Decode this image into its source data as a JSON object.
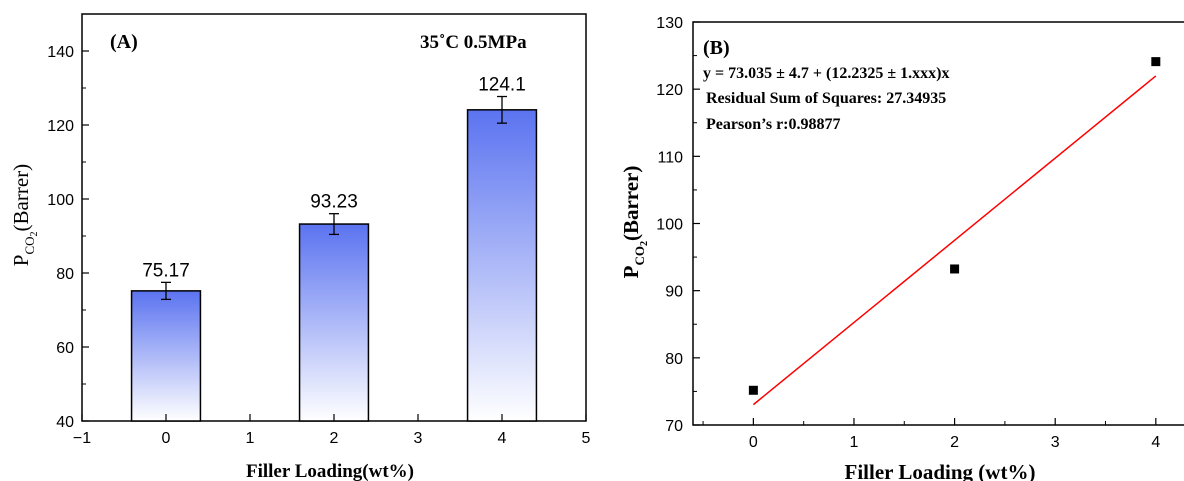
{
  "chart_data": [
    {
      "type": "bar",
      "panel_label": "(A)",
      "annotation": "35˚C 0.5MPa",
      "xlabel": "Filler Loading(wt%)",
      "ylabel": "P",
      "ylabel_sub": "CO",
      "ylabel_sub2": "2",
      "ylabel_unit": "(Barrer)",
      "x": [
        0,
        2,
        4
      ],
      "values": [
        75.17,
        93.23,
        124.1
      ],
      "value_labels": [
        "75.17",
        "93.23",
        "124.1"
      ],
      "error": [
        2.3,
        2.8,
        3.6
      ],
      "xlim": [
        -1,
        5
      ],
      "ylim": [
        40,
        150
      ],
      "xticks": [
        -1,
        0,
        1,
        2,
        3,
        4,
        5
      ],
      "xtick_labels": [
        "−1",
        "0",
        "1",
        "2",
        "3",
        "4",
        "5"
      ],
      "yticks": [
        40,
        60,
        80,
        100,
        120,
        140
      ],
      "bar_color": "#5b73f0"
    },
    {
      "type": "scatter",
      "panel_label": "(B)",
      "annotation_lines": [
        "y = 73.035 ± 4.7 + (12.2325 ± 1.xxx)x",
        "Residual Sum of Squares: 27.34935",
        "Pearson’s r:0.98877"
      ],
      "xlabel": "Filler Loading (wt%)",
      "ylabel": "P",
      "ylabel_sub": "CO",
      "ylabel_sub2": "2",
      "ylabel_unit": "(Barrer)",
      "x": [
        0,
        2,
        4
      ],
      "y": [
        75.17,
        93.23,
        124.1
      ],
      "fit": {
        "intercept": 73.035,
        "slope": 12.2325,
        "x_range": [
          0,
          4
        ],
        "color": "#ff0000"
      },
      "xlim": [
        -0.6,
        4.3
      ],
      "ylim": [
        70,
        130
      ],
      "xticks": [
        0,
        1,
        2,
        3,
        4
      ],
      "yticks": [
        70,
        80,
        90,
        100,
        110,
        120,
        130
      ]
    }
  ]
}
